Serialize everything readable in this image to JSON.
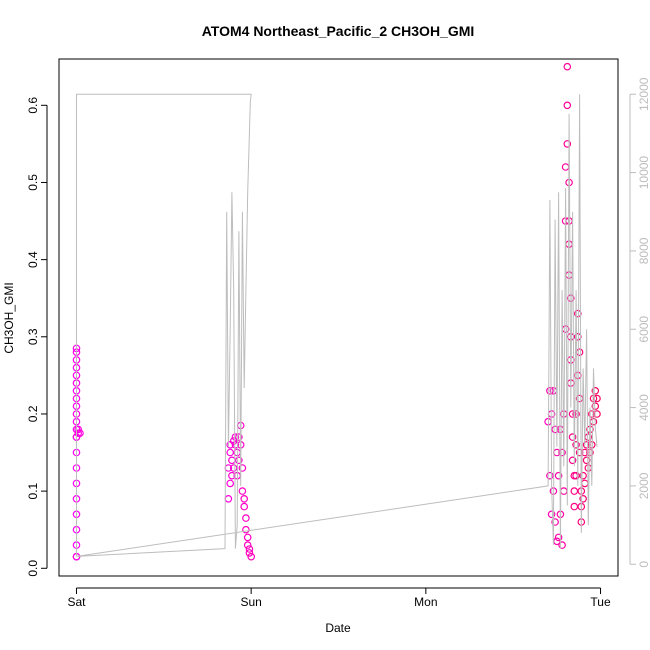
{
  "chart_data": {
    "type": "scatter",
    "title": "ATOM4 Northeast_Pacific_2 CH3OH_GMI",
    "xlabel": "Date",
    "ylabel": "CH3OH_GMI",
    "x_ticks": [
      {
        "day": 0,
        "label": "Sat"
      },
      {
        "day": 1,
        "label": "Sun"
      },
      {
        "day": 2,
        "label": "Mon"
      },
      {
        "day": 3,
        "label": "Tue"
      }
    ],
    "xlim": [
      -0.1,
      3.1
    ],
    "ylim": [
      -0.01,
      0.66
    ],
    "y_ticks": [
      0.0,
      0.1,
      0.2,
      0.3,
      0.4,
      0.5,
      0.6
    ],
    "y_tick_labels": [
      "0.0",
      "0.1",
      "0.2",
      "0.3",
      "0.4",
      "0.5",
      "0.6"
    ],
    "y2lim": [
      -300,
      12900
    ],
    "y2_ticks": [
      0,
      2000,
      4000,
      6000,
      8000,
      10000,
      12000
    ],
    "y2_tick_labels": [
      "0",
      "2000",
      "4000",
      "6000",
      "8000",
      "10000",
      "12000"
    ],
    "colors": {
      "points_start": "#ff00ff",
      "points_end": "#ff0060",
      "altitude_line": "#bdbdbd",
      "axis": "#000000",
      "right_axis": "#bdbdbd"
    },
    "series": [
      {
        "kind": "points",
        "x": [
          0.0,
          0.0,
          0.0,
          0.0,
          0.0,
          0.0,
          0.0,
          0.0,
          0.0,
          0.0,
          0.0,
          0.0,
          0.0,
          0.0,
          0.0,
          0.0,
          0.0,
          0.0,
          0.0,
          0.0,
          0.0,
          0.0,
          0.0,
          0.01,
          0.01,
          0.02,
          0.87,
          0.87,
          0.88,
          0.88,
          0.88,
          0.89,
          0.89,
          0.9,
          0.9,
          0.91,
          0.91,
          0.92,
          0.92,
          0.93,
          0.93,
          0.94,
          0.94,
          0.95,
          0.95,
          0.96,
          0.96,
          0.97,
          0.97,
          0.98,
          0.98,
          0.99,
          0.99,
          1.0,
          2.7,
          2.71,
          2.71,
          2.72,
          2.72,
          2.73,
          2.73,
          2.74,
          2.74,
          2.75,
          2.75,
          2.76,
          2.76,
          2.77,
          2.77,
          2.78,
          2.78,
          2.79,
          2.79,
          2.8,
          2.8,
          2.8,
          2.81,
          2.81,
          2.81,
          2.82,
          2.82,
          2.82,
          2.82,
          2.83,
          2.83,
          2.83,
          2.83,
          2.84,
          2.84,
          2.84,
          2.85,
          2.85,
          2.85,
          2.86,
          2.86,
          2.86,
          2.87,
          2.87,
          2.87,
          2.88,
          2.88,
          2.88,
          2.89,
          2.89,
          2.89,
          2.9,
          2.9,
          2.91,
          2.91,
          2.92,
          2.92,
          2.93,
          2.93,
          2.94,
          2.94,
          2.95,
          2.95,
          2.96,
          2.96,
          2.97,
          2.97,
          2.98,
          2.98
        ],
        "y": [
          0.015,
          0.03,
          0.05,
          0.07,
          0.09,
          0.11,
          0.13,
          0.15,
          0.17,
          0.19,
          0.21,
          0.23,
          0.25,
          0.27,
          0.285,
          0.28,
          0.26,
          0.24,
          0.22,
          0.2,
          0.18,
          0.17,
          0.015,
          0.18,
          0.175,
          0.175,
          0.09,
          0.13,
          0.16,
          0.11,
          0.15,
          0.14,
          0.12,
          0.165,
          0.13,
          0.17,
          0.16,
          0.15,
          0.12,
          0.14,
          0.17,
          0.185,
          0.16,
          0.13,
          0.1,
          0.09,
          0.08,
          0.065,
          0.05,
          0.04,
          0.03,
          0.025,
          0.02,
          0.015,
          0.19,
          0.23,
          0.12,
          0.2,
          0.07,
          0.23,
          0.1,
          0.18,
          0.06,
          0.15,
          0.035,
          0.12,
          0.04,
          0.18,
          0.07,
          0.15,
          0.03,
          0.1,
          0.2,
          0.31,
          0.45,
          0.52,
          0.6,
          0.65,
          0.55,
          0.5,
          0.45,
          0.42,
          0.38,
          0.35,
          0.3,
          0.27,
          0.24,
          0.2,
          0.17,
          0.14,
          0.12,
          0.1,
          0.08,
          0.12,
          0.16,
          0.2,
          0.25,
          0.3,
          0.33,
          0.28,
          0.22,
          0.15,
          0.1,
          0.08,
          0.06,
          0.09,
          0.12,
          0.15,
          0.11,
          0.16,
          0.14,
          0.17,
          0.13,
          0.15,
          0.18,
          0.16,
          0.2,
          0.22,
          0.19,
          0.21,
          0.23,
          0.2,
          0.22
        ]
      },
      {
        "kind": "line",
        "axis": "right",
        "x": [
          0.0,
          0.0,
          0.995,
          1.0,
          0.995,
          0.99,
          0.98,
          0.97,
          0.96,
          0.95,
          0.94,
          0.93,
          0.92,
          0.91,
          0.9,
          0.89,
          0.88,
          0.87,
          0.86,
          0.85,
          0.0,
          2.7,
          2.71,
          2.72,
          2.73,
          2.74,
          2.75,
          2.76,
          2.77,
          2.78,
          2.79,
          2.8,
          2.81,
          2.82,
          2.83,
          2.84,
          2.85,
          2.86,
          2.87,
          2.88,
          2.89,
          2.9,
          2.91,
          2.92,
          2.93,
          2.94,
          2.95,
          2.96,
          2.97,
          2.98
        ],
        "y": [
          200,
          12000,
          12000,
          12000,
          11800,
          11000,
          9500,
          7000,
          4500,
          9000,
          2000,
          8500,
          1000,
          400,
          7000,
          9500,
          6000,
          3000,
          9000,
          400,
          200,
          2000,
          9300,
          2000,
          500,
          8800,
          3000,
          9500,
          400,
          7000,
          2500,
          9600,
          1500,
          11500,
          4000,
          9000,
          2500,
          7000,
          2000,
          12000,
          800,
          5000,
          3000,
          6000,
          1000,
          4000,
          2000,
          5000,
          3500,
          3000
        ]
      }
    ]
  }
}
